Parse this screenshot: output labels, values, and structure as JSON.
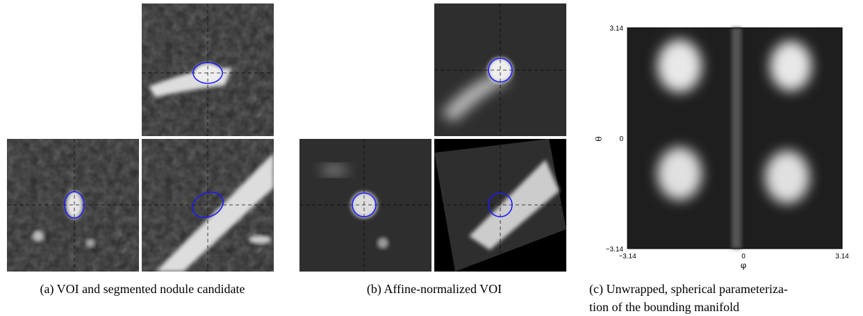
{
  "panels": [
    {
      "caption": "(a) VOI and segmented nodule candidate"
    },
    {
      "caption": "(b) Affine-normalized VOI"
    },
    {
      "caption_lines": [
        "(c) Unwrapped, spherical parameteriza-",
        "tion of the bounding manifold"
      ],
      "y_axis": {
        "label": "θ",
        "ticks": [
          "3.14",
          "0",
          "−3.14"
        ]
      },
      "x_axis": {
        "label": "φ",
        "ticks": [
          "−3.14",
          "0",
          "3.14"
        ]
      }
    }
  ]
}
